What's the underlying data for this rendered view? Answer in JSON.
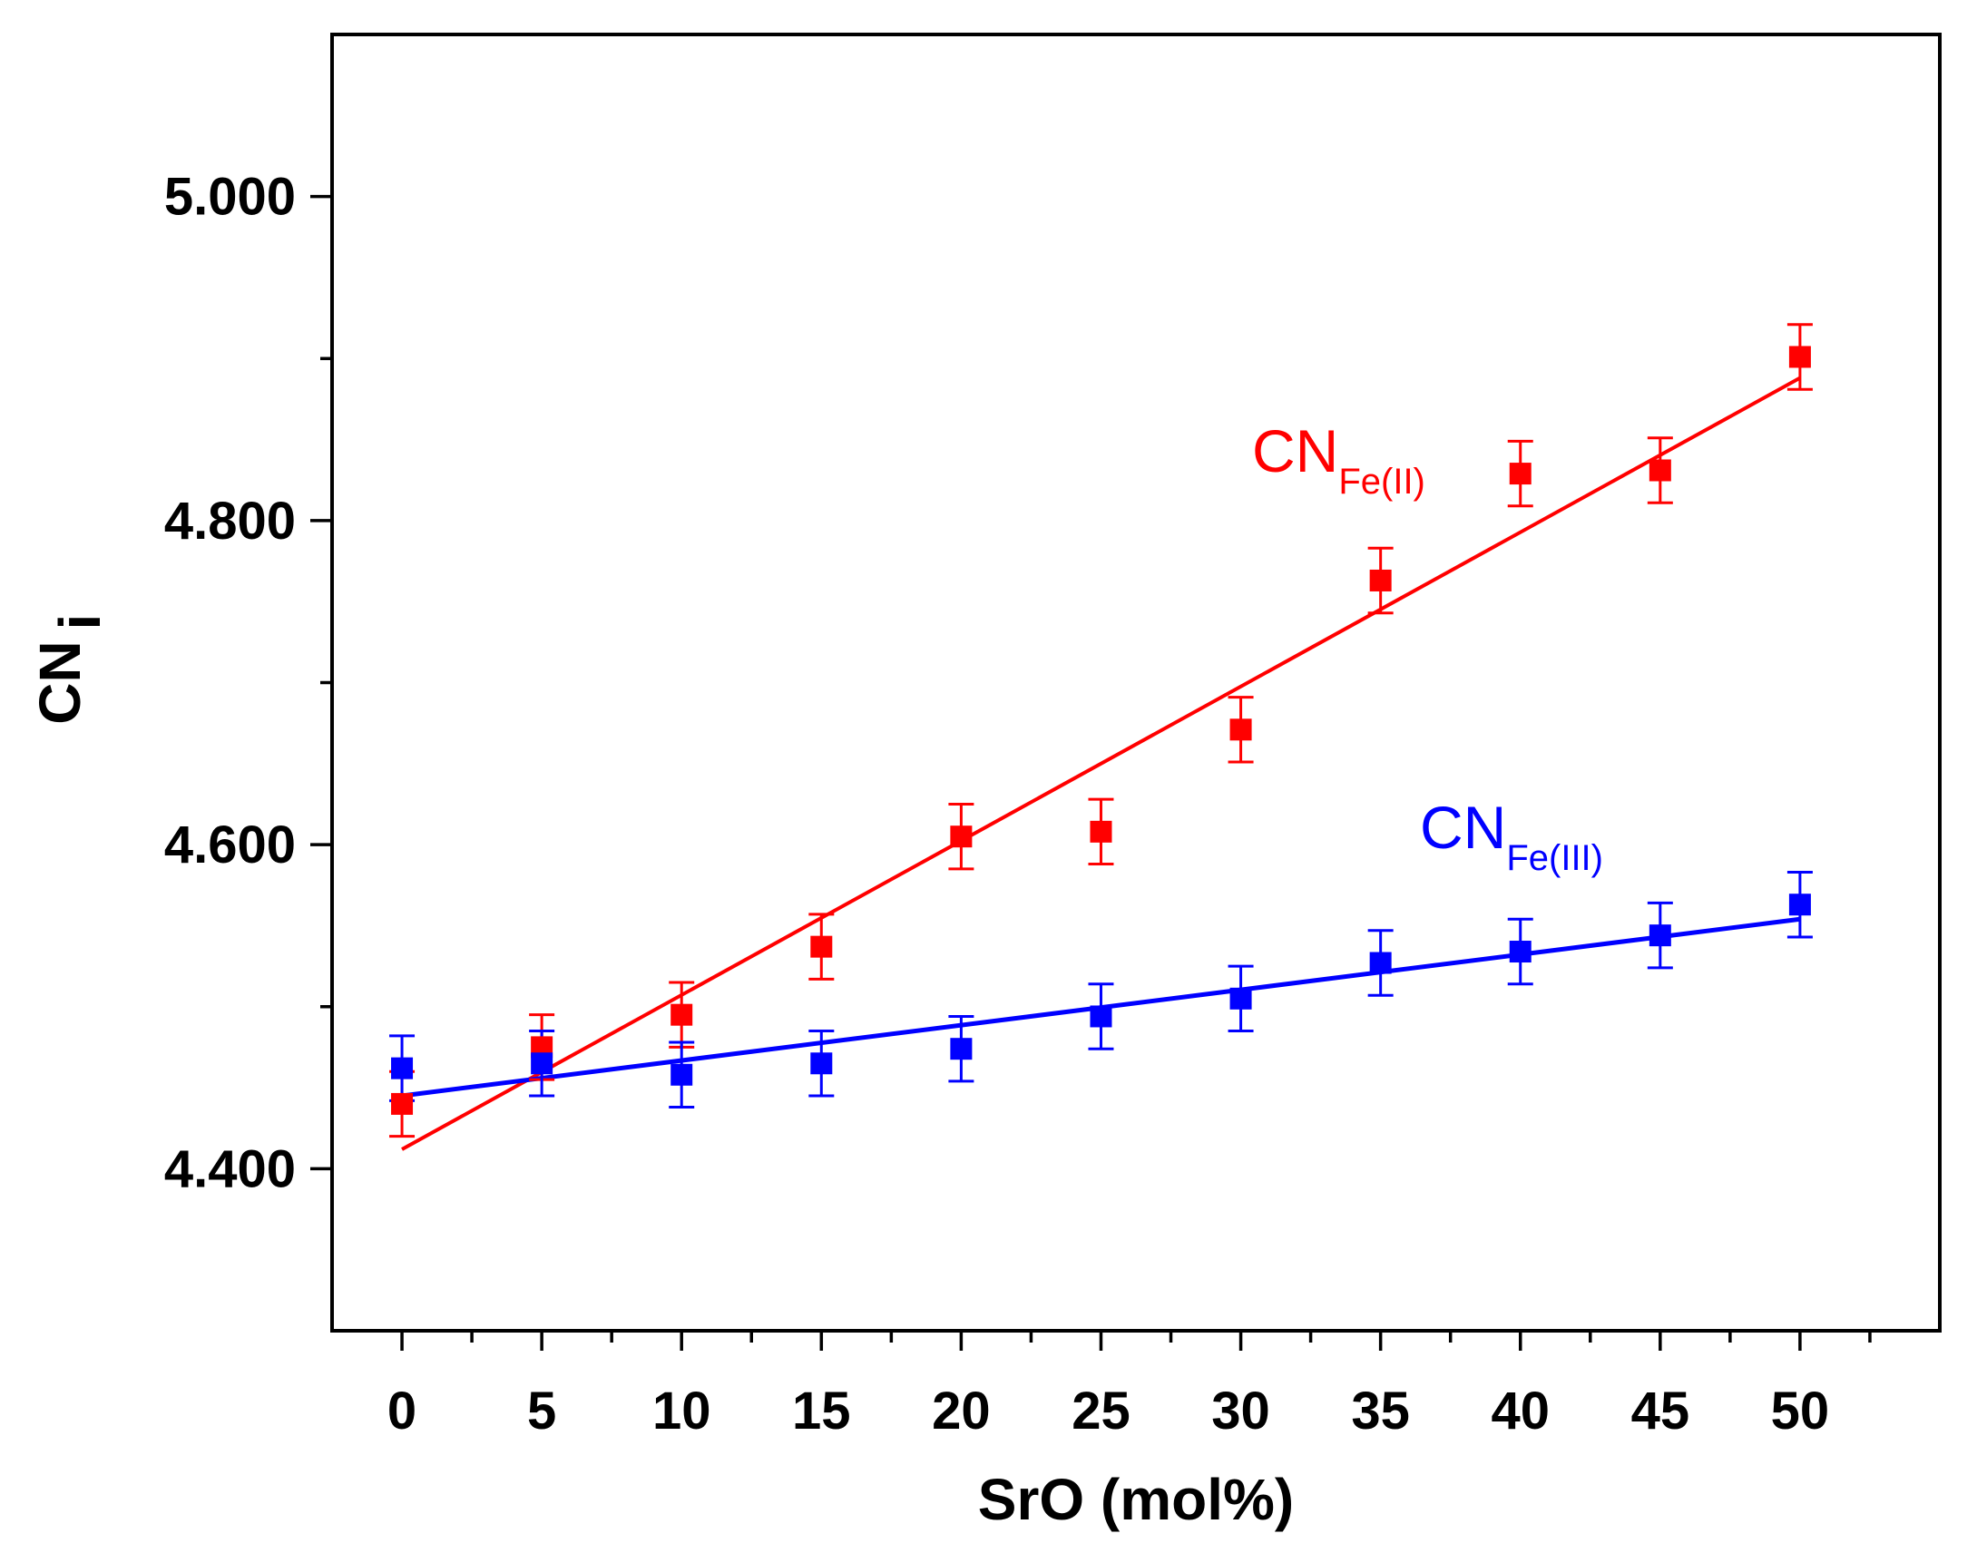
{
  "chart_data": {
    "type": "scatter",
    "title": "",
    "xlabel": "SrO (mol%)",
    "ylabel": {
      "main": "CN",
      "sub": "i"
    },
    "xlim": [
      -2.5,
      55
    ],
    "ylim": [
      4.3,
      5.1
    ],
    "x_ticks": [
      0,
      5,
      10,
      15,
      20,
      25,
      30,
      35,
      40,
      45,
      50
    ],
    "x_tick_labels": [
      "0",
      "5",
      "10",
      "15",
      "20",
      "25",
      "30",
      "35",
      "40",
      "45",
      "50"
    ],
    "x_minor_ticks": [
      2.5,
      7.5,
      12.5,
      17.5,
      22.5,
      27.5,
      32.5,
      37.5,
      42.5,
      47.5,
      52.5
    ],
    "y_ticks": [
      4.4,
      4.6,
      4.8,
      5.0
    ],
    "y_tick_labels": [
      "4.400",
      "4.600",
      "4.800",
      "5.000"
    ],
    "y_minor_ticks": [
      4.5,
      4.7,
      4.9
    ],
    "grid": false,
    "legend": "none",
    "series": [
      {
        "name": "CN Fe(II)",
        "label_main": "CN",
        "label_sub": "Fe(II)",
        "color": "#ff0000",
        "marker": "square",
        "x": [
          0,
          5,
          10,
          15,
          20,
          25,
          30,
          35,
          40,
          45,
          50
        ],
        "y": [
          4.44,
          4.475,
          4.495,
          4.537,
          4.605,
          4.608,
          4.671,
          4.763,
          4.829,
          4.831,
          4.901
        ],
        "error": [
          0.02,
          0.02,
          0.02,
          0.02,
          0.02,
          0.02,
          0.02,
          0.02,
          0.02,
          0.02,
          0.02
        ],
        "fit": {
          "x": [
            0,
            50
          ],
          "y": [
            4.412,
            4.888
          ]
        }
      },
      {
        "name": "CN Fe(III)",
        "label_main": "CN",
        "label_sub": "Fe(III)",
        "color": "#0000ff",
        "marker": "square",
        "x": [
          0,
          5,
          10,
          15,
          20,
          25,
          30,
          35,
          40,
          45,
          50
        ],
        "y": [
          4.462,
          4.465,
          4.458,
          4.465,
          4.474,
          4.494,
          4.505,
          4.527,
          4.534,
          4.544,
          4.563
        ],
        "error": [
          0.02,
          0.02,
          0.02,
          0.02,
          0.02,
          0.02,
          0.02,
          0.02,
          0.02,
          0.02,
          0.02
        ],
        "fit": {
          "x": [
            0,
            50
          ],
          "y": [
            4.445,
            4.554
          ]
        }
      }
    ]
  }
}
